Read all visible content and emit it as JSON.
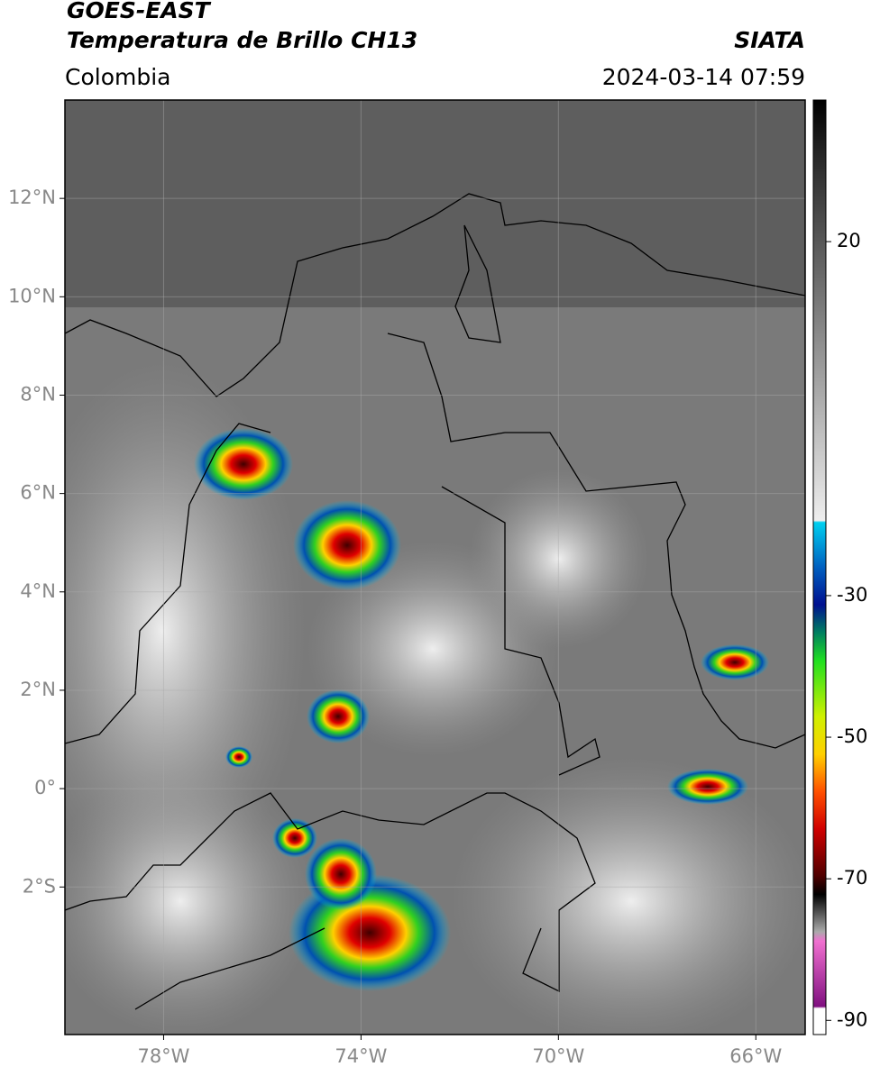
{
  "header": {
    "title": "GOES-EAST",
    "subtitle": "Temperatura de Brillo CH13",
    "region": "Colombia",
    "source": "SIATA",
    "datetime": "2024-03-14 07:59"
  },
  "map": {
    "xlim": [
      -80,
      -65
    ],
    "ylim": [
      -5,
      14
    ],
    "grid": true,
    "xticks": [
      {
        "value": -78,
        "label": "78°W"
      },
      {
        "value": -74,
        "label": "74°W"
      },
      {
        "value": -70,
        "label": "70°W"
      },
      {
        "value": -66,
        "label": "66°W"
      }
    ],
    "yticks": [
      {
        "value": 12,
        "label": "12°N"
      },
      {
        "value": 10,
        "label": "10°N"
      },
      {
        "value": 8,
        "label": "8°N"
      },
      {
        "value": 6,
        "label": "6°N"
      },
      {
        "value": 4,
        "label": "4°N"
      },
      {
        "value": 2,
        "label": "2°N"
      },
      {
        "value": 0,
        "label": "0°"
      },
      {
        "value": -2,
        "label": "2°S"
      }
    ]
  },
  "colorbar": {
    "lim": [
      -92,
      40
    ],
    "ticks": [
      20,
      -30,
      -50,
      -70,
      -90
    ]
  }
}
